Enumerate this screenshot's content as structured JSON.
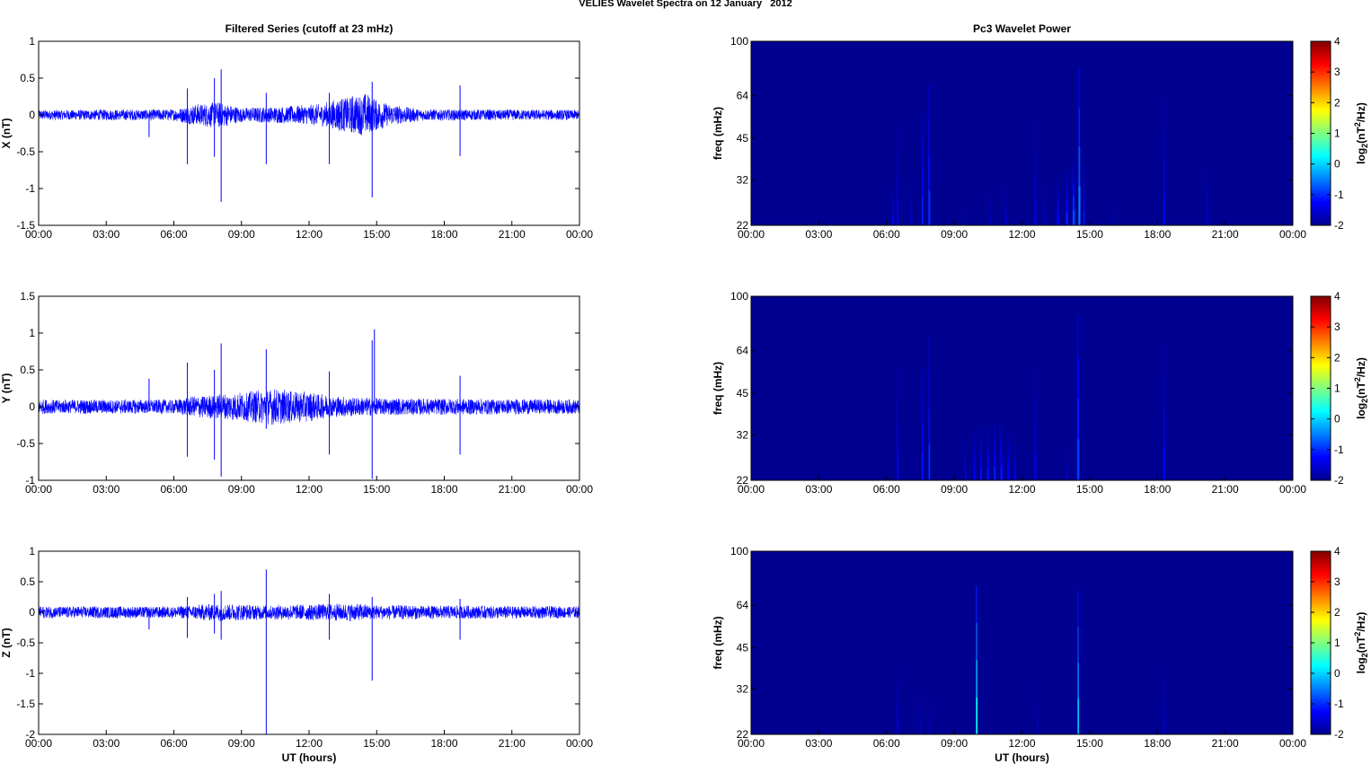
{
  "figure": {
    "title": "VELIES Wavelet Spectra on 12 January   2012"
  },
  "chart_data": [
    {
      "type": "line",
      "title": "Filtered Series (cutoff at 23 mHz)",
      "ylabel": "X (nT)",
      "xlabel": "",
      "x_ticks": [
        "00:00",
        "03:00",
        "06:00",
        "09:00",
        "12:00",
        "15:00",
        "18:00",
        "21:00",
        "00:00"
      ],
      "xlim_hours": [
        0,
        24
      ],
      "ylim": [
        -1.5,
        1
      ],
      "y_ticks": [
        1,
        0.5,
        0,
        -0.5,
        -1,
        -1.5
      ],
      "y_tick_labels": [
        "1",
        "0.5",
        "0",
        "-0.5",
        "-1",
        "-1.5"
      ],
      "color": "#0000ff",
      "noise_envelope": [
        [
          0,
          0.07
        ],
        [
          6,
          0.08
        ],
        [
          7,
          0.15
        ],
        [
          8,
          0.18
        ],
        [
          9,
          0.1
        ],
        [
          11,
          0.12
        ],
        [
          12.5,
          0.15
        ],
        [
          13.5,
          0.25
        ],
        [
          14.5,
          0.3
        ],
        [
          15.5,
          0.15
        ],
        [
          17,
          0.08
        ],
        [
          24,
          0.07
        ]
      ],
      "spikes": [
        {
          "t": 4.9,
          "v": -0.3
        },
        {
          "t": 6.6,
          "v": 0.36
        },
        {
          "t": 6.6,
          "v": -0.67
        },
        {
          "t": 7.8,
          "v": 0.5
        },
        {
          "t": 7.8,
          "v": -0.57
        },
        {
          "t": 8.1,
          "v": 0.62
        },
        {
          "t": 8.1,
          "v": -1.18
        },
        {
          "t": 10.1,
          "v": 0.3
        },
        {
          "t": 10.1,
          "v": -0.67
        },
        {
          "t": 12.9,
          "v": 0.3
        },
        {
          "t": 12.9,
          "v": -0.67
        },
        {
          "t": 14.8,
          "v": 0.45
        },
        {
          "t": 14.8,
          "v": -1.12
        },
        {
          "t": 18.7,
          "v": 0.4
        },
        {
          "t": 18.7,
          "v": -0.56
        }
      ]
    },
    {
      "type": "line",
      "title": "",
      "ylabel": "Y (nT)",
      "xlabel": "",
      "x_ticks": [
        "00:00",
        "03:00",
        "06:00",
        "09:00",
        "12:00",
        "15:00",
        "18:00",
        "21:00",
        "00:00"
      ],
      "xlim_hours": [
        0,
        24
      ],
      "ylim": [
        -1,
        1.5
      ],
      "y_ticks": [
        1.5,
        1,
        0.5,
        0,
        -0.5,
        -1
      ],
      "y_tick_labels": [
        "1.5",
        "1",
        "0.5",
        "0",
        "-0.5",
        "-1"
      ],
      "color": "#0000ff",
      "noise_envelope": [
        [
          0,
          0.1
        ],
        [
          6,
          0.1
        ],
        [
          7,
          0.15
        ],
        [
          9,
          0.2
        ],
        [
          10.5,
          0.25
        ],
        [
          12,
          0.2
        ],
        [
          13,
          0.15
        ],
        [
          15,
          0.12
        ],
        [
          24,
          0.1
        ]
      ],
      "spikes": [
        {
          "t": 4.9,
          "v": 0.38
        },
        {
          "t": 6.6,
          "v": 0.6
        },
        {
          "t": 6.6,
          "v": -0.68
        },
        {
          "t": 7.8,
          "v": 0.5
        },
        {
          "t": 7.8,
          "v": -0.72
        },
        {
          "t": 8.1,
          "v": 0.86
        },
        {
          "t": 8.1,
          "v": -0.95
        },
        {
          "t": 10.1,
          "v": 0.78
        },
        {
          "t": 10.1,
          "v": -0.3
        },
        {
          "t": 12.9,
          "v": 0.48
        },
        {
          "t": 12.9,
          "v": -0.65
        },
        {
          "t": 14.8,
          "v": 0.9
        },
        {
          "t": 14.9,
          "v": 1.05
        },
        {
          "t": 14.8,
          "v": -0.98
        },
        {
          "t": 18.7,
          "v": 0.42
        },
        {
          "t": 18.7,
          "v": -0.65
        }
      ]
    },
    {
      "type": "line",
      "title": "",
      "ylabel": "Z (nT)",
      "xlabel": "UT (hours)",
      "x_ticks": [
        "00:00",
        "03:00",
        "06:00",
        "09:00",
        "12:00",
        "15:00",
        "18:00",
        "21:00",
        "00:00"
      ],
      "xlim_hours": [
        0,
        24
      ],
      "ylim": [
        -2,
        1
      ],
      "y_ticks": [
        1,
        0.5,
        0,
        -0.5,
        -1,
        -1.5,
        -2
      ],
      "y_tick_labels": [
        "1",
        "0.5",
        "0",
        "-0.5",
        "-1",
        "-1.5",
        "-2"
      ],
      "color": "#0000ff",
      "noise_envelope": [
        [
          0,
          0.1
        ],
        [
          6,
          0.1
        ],
        [
          8,
          0.15
        ],
        [
          10,
          0.12
        ],
        [
          14,
          0.15
        ],
        [
          15,
          0.12
        ],
        [
          24,
          0.1
        ]
      ],
      "spikes": [
        {
          "t": 4.9,
          "v": -0.28
        },
        {
          "t": 6.6,
          "v": 0.25
        },
        {
          "t": 6.6,
          "v": -0.42
        },
        {
          "t": 7.8,
          "v": 0.3
        },
        {
          "t": 7.8,
          "v": -0.35
        },
        {
          "t": 8.1,
          "v": 0.35
        },
        {
          "t": 8.1,
          "v": -0.45
        },
        {
          "t": 10.1,
          "v": 0.7
        },
        {
          "t": 10.1,
          "v": -2.0
        },
        {
          "t": 12.9,
          "v": 0.3
        },
        {
          "t": 12.9,
          "v": -0.45
        },
        {
          "t": 14.8,
          "v": 0.25
        },
        {
          "t": 14.8,
          "v": -1.12
        },
        {
          "t": 18.7,
          "v": 0.22
        },
        {
          "t": 18.7,
          "v": -0.45
        }
      ]
    },
    {
      "type": "heatmap",
      "title": "Pc3 Wavelet Power",
      "ylabel": "freq (mHz)",
      "xlabel": "",
      "x_ticks": [
        "00:00",
        "03:00",
        "06:00",
        "09:00",
        "12:00",
        "15:00",
        "18:00",
        "21:00",
        "00:00"
      ],
      "xlim_hours": [
        0,
        24
      ],
      "y_scale": "log",
      "ylim": [
        22,
        100
      ],
      "y_ticks": [
        100,
        64,
        45,
        32,
        22
      ],
      "y_tick_labels": [
        "100",
        "64",
        "45",
        "32",
        "22"
      ],
      "colorbar": {
        "label": "log2(nT^2/Hz)",
        "label_main": "log",
        "label_sub": "2",
        "label_rest": "(nT",
        "label_sup": "2",
        "label_end": "/Hz)",
        "range": [
          -2,
          4
        ],
        "ticks": [
          4,
          3,
          2,
          1,
          0,
          -1,
          -2
        ],
        "tick_labels": [
          "4",
          "3",
          "2",
          "1",
          "0",
          "-1",
          "-2"
        ]
      },
      "colormap": "jet",
      "background_value": -2,
      "streaks": [
        {
          "t": 6.3,
          "top": 30,
          "peak": -1.3
        },
        {
          "t": 6.5,
          "top": 50,
          "peak": -1.2
        },
        {
          "t": 7.1,
          "top": 30,
          "peak": -1.5
        },
        {
          "t": 7.6,
          "top": 55,
          "peak": -0.9
        },
        {
          "t": 7.9,
          "top": 70,
          "peak": -0.8
        },
        {
          "t": 9.5,
          "top": 26,
          "peak": -1.6
        },
        {
          "t": 10.6,
          "top": 30,
          "peak": -1.6
        },
        {
          "t": 11.3,
          "top": 30,
          "peak": -1.5
        },
        {
          "t": 12.6,
          "top": 50,
          "peak": -1.4
        },
        {
          "t": 13.0,
          "top": 30,
          "peak": -1.5
        },
        {
          "t": 13.6,
          "top": 32,
          "peak": -1.2
        },
        {
          "t": 14.0,
          "top": 34,
          "peak": -0.9
        },
        {
          "t": 14.3,
          "top": 36,
          "peak": -0.6
        },
        {
          "t": 14.55,
          "top": 80,
          "peak": -0.2
        },
        {
          "t": 14.75,
          "top": 36,
          "peak": -1.0
        },
        {
          "t": 16.0,
          "top": 28,
          "peak": -1.7
        },
        {
          "t": 18.3,
          "top": 62,
          "peak": -1.1
        },
        {
          "t": 20.2,
          "top": 35,
          "peak": -1.5
        }
      ]
    },
    {
      "type": "heatmap",
      "title": "",
      "ylabel": "freq (mHz)",
      "xlabel": "",
      "x_ticks": [
        "00:00",
        "03:00",
        "06:00",
        "09:00",
        "12:00",
        "15:00",
        "18:00",
        "21:00",
        "00:00"
      ],
      "xlim_hours": [
        0,
        24
      ],
      "y_scale": "log",
      "ylim": [
        22,
        100
      ],
      "y_ticks": [
        100,
        64,
        45,
        32,
        22
      ],
      "y_tick_labels": [
        "100",
        "64",
        "45",
        "32",
        "22"
      ],
      "colorbar": {
        "label": "log2(nT^2/Hz)",
        "label_main": "log",
        "label_sub": "2",
        "label_rest": "(nT",
        "label_sup": "2",
        "label_end": "/Hz)",
        "range": [
          -2,
          4
        ],
        "ticks": [
          4,
          3,
          2,
          1,
          0,
          -1,
          -2
        ],
        "tick_labels": [
          "4",
          "3",
          "2",
          "1",
          "0",
          "-1",
          "-2"
        ]
      },
      "colormap": "jet",
      "background_value": -2,
      "streaks": [
        {
          "t": 6.5,
          "top": 55,
          "peak": -1.2
        },
        {
          "t": 7.6,
          "top": 55,
          "peak": -1.0
        },
        {
          "t": 7.9,
          "top": 72,
          "peak": -0.8
        },
        {
          "t": 9.5,
          "top": 30,
          "peak": -1.2
        },
        {
          "t": 9.9,
          "top": 32,
          "peak": -1.1
        },
        {
          "t": 10.2,
          "top": 34,
          "peak": -1.0
        },
        {
          "t": 10.5,
          "top": 34,
          "peak": -1.0
        },
        {
          "t": 10.8,
          "top": 35,
          "peak": -0.9
        },
        {
          "t": 11.1,
          "top": 34,
          "peak": -1.0
        },
        {
          "t": 11.4,
          "top": 32,
          "peak": -1.1
        },
        {
          "t": 11.7,
          "top": 30,
          "peak": -1.3
        },
        {
          "t": 12.6,
          "top": 55,
          "peak": -1.4
        },
        {
          "t": 14.0,
          "top": 28,
          "peak": -1.5
        },
        {
          "t": 14.5,
          "top": 85,
          "peak": -0.7
        },
        {
          "t": 18.3,
          "top": 68,
          "peak": -1.2
        }
      ]
    },
    {
      "type": "heatmap",
      "title": "",
      "ylabel": "freq (mHz)",
      "xlabel": "UT (hours)",
      "x_ticks": [
        "00:00",
        "03:00",
        "06:00",
        "09:00",
        "12:00",
        "15:00",
        "18:00",
        "21:00",
        "00:00"
      ],
      "xlim_hours": [
        0,
        24
      ],
      "y_scale": "log",
      "ylim": [
        22,
        100
      ],
      "y_ticks": [
        100,
        64,
        45,
        32,
        22
      ],
      "y_tick_labels": [
        "100",
        "64",
        "45",
        "32",
        "22"
      ],
      "colorbar": {
        "label": "log2(nT^2/Hz)",
        "label_main": "log",
        "label_sub": "2",
        "label_rest": "(nT",
        "label_sup": "2",
        "label_end": "/Hz)",
        "range": [
          -2,
          4
        ],
        "ticks": [
          4,
          3,
          2,
          1,
          0,
          -1,
          -2
        ],
        "tick_labels": [
          "4",
          "3",
          "2",
          "1",
          "0",
          "-1",
          "-2"
        ]
      },
      "colormap": "jet",
      "background_value": -2,
      "streaks": [
        {
          "t": 6.5,
          "top": 38,
          "peak": -1.4
        },
        {
          "t": 7.5,
          "top": 32,
          "peak": -1.6
        },
        {
          "t": 7.9,
          "top": 30,
          "peak": -1.6
        },
        {
          "t": 10.0,
          "top": 75,
          "peak": 0.7
        },
        {
          "t": 12.7,
          "top": 35,
          "peak": -1.6
        },
        {
          "t": 14.5,
          "top": 72,
          "peak": 0.3
        },
        {
          "t": 18.3,
          "top": 40,
          "peak": -1.5
        }
      ]
    }
  ]
}
